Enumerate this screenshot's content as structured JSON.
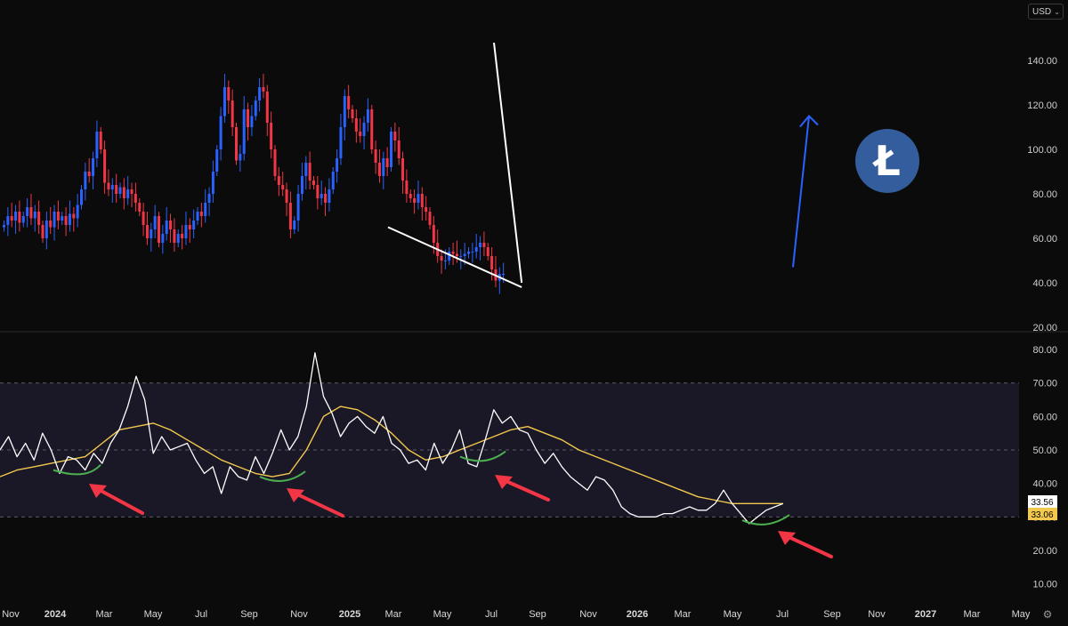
{
  "currency_selector": {
    "label": "USD"
  },
  "logo": {
    "name": "litecoin-logo",
    "glyph": "Ł",
    "color": "#345d9d"
  },
  "colors": {
    "up": "#2962ff",
    "down": "#f23645",
    "rsi": "#ffffff",
    "rsi_ma": "#f2c94c",
    "trendline": "#ffffff",
    "projection_arrow": "#2962ff",
    "annotation_arrow": "#f23645",
    "annotation_curve": "#4caf50",
    "rsi_band": "#1a1727"
  },
  "chart_data": [
    {
      "type": "candlestick",
      "title": "",
      "y_ticks": [
        "140.00",
        "120.00",
        "100.00",
        "80.00",
        "60.00",
        "40.00",
        "20.00"
      ],
      "ylim": [
        20,
        160
      ],
      "x_ticks": [
        "Nov",
        "2024",
        "Mar",
        "May",
        "Jul",
        "Sep",
        "Nov",
        "2025",
        "Mar",
        "May",
        "Jul",
        "Sep",
        "Nov",
        "2026",
        "Mar",
        "May",
        "Jul",
        "Sep",
        "Nov",
        "2027",
        "Mar",
        "May"
      ],
      "x_ticks_bold": [
        "2024",
        "2025",
        "2026",
        "2027"
      ],
      "closes": [
        66,
        70,
        68,
        72,
        67,
        70,
        74,
        69,
        72,
        66,
        60,
        68,
        65,
        72,
        68,
        70,
        66,
        71,
        69,
        75,
        82,
        90,
        88,
        96,
        108,
        100,
        85,
        82,
        84,
        80,
        83,
        78,
        82,
        80,
        76,
        72,
        66,
        60,
        64,
        70,
        58,
        62,
        68,
        64,
        58,
        62,
        60,
        66,
        64,
        68,
        72,
        70,
        76,
        80,
        90,
        100,
        115,
        128,
        122,
        110,
        95,
        98,
        118,
        110,
        115,
        122,
        128,
        126,
        112,
        100,
        88,
        84,
        82,
        76,
        64,
        68,
        80,
        88,
        94,
        86,
        84,
        78,
        80,
        76,
        82,
        90,
        96,
        110,
        124,
        118,
        114,
        108,
        106,
        112,
        118,
        100,
        94,
        88,
        96,
        92,
        108,
        104,
        96,
        86,
        80,
        78,
        76,
        80,
        74,
        72,
        66,
        58,
        52,
        50,
        50,
        54,
        53,
        52,
        52,
        53,
        54,
        54,
        56,
        58,
        56,
        52,
        46,
        41,
        44,
        44
      ],
      "indicator_lines": [
        {
          "name": "resistance-trendline",
          "from": [
            "2024-11",
            148
          ],
          "to": [
            "2026-07",
            40
          ]
        },
        {
          "name": "support-trendline",
          "from": [
            "2025-04",
            65
          ],
          "to": [
            "2026-07",
            38
          ]
        }
      ],
      "projection": {
        "from_price": 47,
        "to_price": 115
      }
    },
    {
      "type": "line",
      "title": "",
      "y_ticks": [
        "80.00",
        "70.00",
        "60.00",
        "50.00",
        "40.00",
        "30.00",
        "20.00",
        "10.00"
      ],
      "ylim": [
        3,
        84
      ],
      "band": [
        30,
        70
      ],
      "mid_line": 50,
      "series": [
        {
          "values": [
            50,
            54,
            48,
            52,
            47,
            55,
            50,
            43,
            48,
            47,
            44,
            49,
            46,
            52,
            56,
            63,
            72,
            65,
            49,
            54,
            50,
            51,
            52,
            47,
            43,
            45,
            37,
            45,
            42,
            41,
            48,
            43,
            49,
            56,
            50,
            54,
            63,
            79,
            66,
            61,
            54,
            58,
            60,
            57,
            55,
            60,
            52,
            50,
            46,
            47,
            44,
            52,
            46,
            50,
            56,
            46,
            45,
            53,
            62,
            58,
            60,
            56,
            55,
            50,
            46,
            49,
            45,
            42,
            40,
            38,
            42,
            41,
            38,
            33,
            31,
            30,
            30,
            30,
            31,
            31,
            32,
            33,
            32,
            32,
            34,
            38,
            34,
            31,
            28,
            30,
            32,
            33,
            34
          ]
        },
        {
          "values": [
            42,
            44,
            45,
            46,
            47,
            48,
            52,
            56,
            57,
            58,
            56,
            53,
            50,
            47,
            45,
            43,
            42,
            43,
            50,
            60,
            63,
            62,
            59,
            55,
            50,
            47,
            48,
            50,
            52,
            54,
            56,
            57,
            55,
            53,
            50,
            48,
            46,
            44,
            42,
            40,
            38,
            36,
            35,
            34,
            34,
            34,
            34
          ]
        },
        {
          "values": [
            33.56
          ]
        },
        {
          "values": [
            33.06
          ]
        }
      ],
      "value_labels": [
        "33.56",
        "33.06"
      ]
    }
  ]
}
